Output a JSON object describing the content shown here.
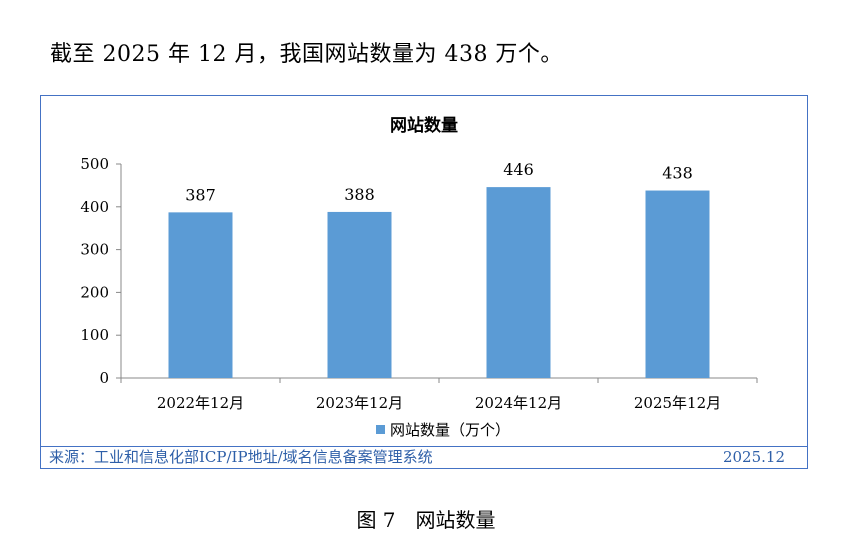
{
  "intro_text": "截至 2025 年 12 月，我国网站数量为 438 万个。",
  "source": "来源：工业和信息化部ICP/IP地址/域名信息备案管理系统",
  "source_date": "2025.12",
  "figure_caption": "图 7　网站数量",
  "colors": {
    "bar": "#5b9bd5",
    "frame": "#4472c4",
    "source_text": "#2e5fa8"
  },
  "chart_data": {
    "type": "bar",
    "title": "网站数量",
    "categories": [
      "2022年12月",
      "2023年12月",
      "2024年12月",
      "2025年12月"
    ],
    "series": [
      {
        "name": "网站数量（万个）",
        "values": [
          387,
          388,
          446,
          438
        ]
      }
    ],
    "ylim": [
      0,
      500
    ],
    "yticks": [
      0,
      100,
      200,
      300,
      400,
      500
    ],
    "grid": false,
    "legend": "bottom"
  }
}
